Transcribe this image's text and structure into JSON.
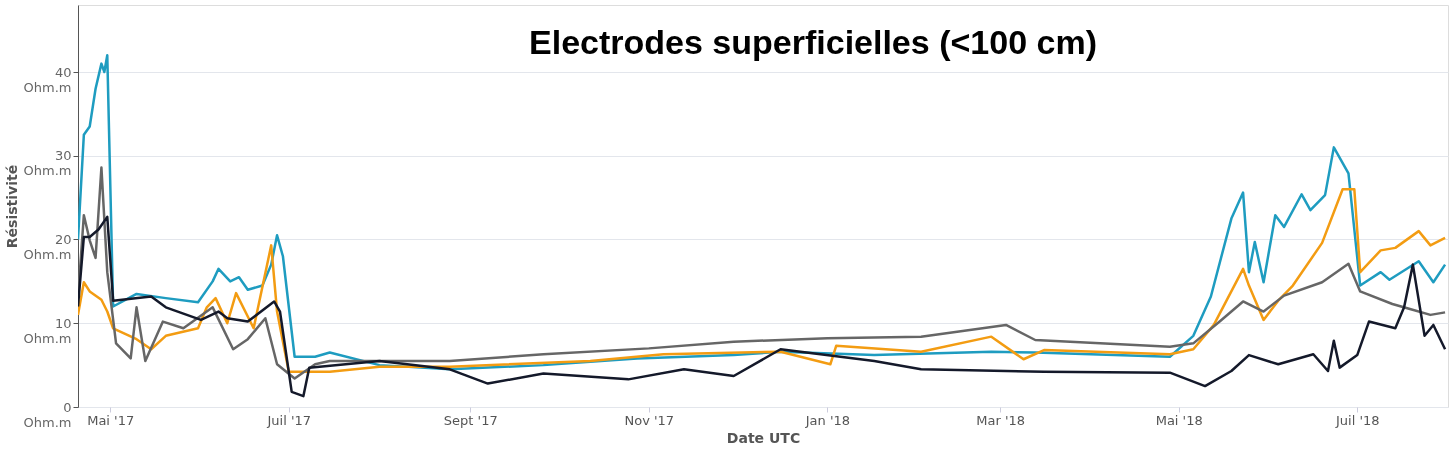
{
  "chart_data": {
    "type": "line",
    "title": "Electrodes superficielles (<100 cm)",
    "xlabel": "Date UTC",
    "ylabel": "Résistivité",
    "xlim": [
      "2017-04-20",
      "2018-08-01"
    ],
    "xticks": [
      {
        "value": "2017-05-01",
        "label": "Mai '17"
      },
      {
        "value": "2017-07-01",
        "label": "Juil '17"
      },
      {
        "value": "2017-09-01",
        "label": "Sept '17"
      },
      {
        "value": "2017-11-01",
        "label": "Nov '17"
      },
      {
        "value": "2018-01-01",
        "label": "Jan '18"
      },
      {
        "value": "2018-03-01",
        "label": "Mar '18"
      },
      {
        "value": "2018-05-01",
        "label": "Mai '18"
      },
      {
        "value": "2018-07-01",
        "label": "Juil '18"
      }
    ],
    "ylim": [
      0,
      48
    ],
    "yticks": [
      {
        "value": 0,
        "label": "0 Ohm.m"
      },
      {
        "value": 10,
        "label": "10 Ohm.m"
      },
      {
        "value": 20,
        "label": "20 Ohm.m"
      },
      {
        "value": 30,
        "label": "30 Ohm.m"
      },
      {
        "value": 40,
        "label": "40 Ohm.m"
      }
    ],
    "grid": "y",
    "legend": false,
    "marker": "none",
    "line_style": "solid",
    "series": [
      {
        "color": "#1e9cc0",
        "x": [
          "2017-04-20",
          "2017-04-22",
          "2017-04-24",
          "2017-04-26",
          "2017-04-28",
          "2017-04-29",
          "2017-04-30",
          "2017-05-02",
          "2017-05-10",
          "2017-05-20",
          "2017-05-31",
          "2017-06-05",
          "2017-06-07",
          "2017-06-11",
          "2017-06-14",
          "2017-06-17",
          "2017-06-22",
          "2017-06-25",
          "2017-06-27",
          "2017-06-29",
          "2017-07-03",
          "2017-07-10",
          "2017-07-15",
          "2017-08-01",
          "2017-08-25",
          "2017-09-26",
          "2017-10-28",
          "2017-11-30",
          "2017-12-16",
          "2018-01-17",
          "2018-02-26",
          "2018-03-13",
          "2018-04-28",
          "2018-05-06",
          "2018-05-12",
          "2018-05-19",
          "2018-05-23",
          "2018-05-25",
          "2018-05-27",
          "2018-05-30",
          "2018-06-03",
          "2018-06-06",
          "2018-06-12",
          "2018-06-15",
          "2018-06-20",
          "2018-06-23",
          "2018-06-28",
          "2018-07-02",
          "2018-07-09",
          "2018-07-12",
          "2018-07-22",
          "2018-07-27",
          "2018-07-31"
        ],
        "values": [
          20,
          32.5,
          33.5,
          38,
          41,
          40,
          42,
          12,
          13.5,
          13,
          12.5,
          15,
          16.5,
          15,
          15.5,
          14,
          14.5,
          17,
          20.5,
          18,
          6,
          6,
          6.5,
          5,
          4.5,
          5,
          5.8,
          6.2,
          6.6,
          6.2,
          6.6,
          6.5,
          6.0,
          8.5,
          13.2,
          22.5,
          25.6,
          16.1,
          19.7,
          14.9,
          22.9,
          21.5,
          25.4,
          23.5,
          25.3,
          31.0,
          27.9,
          14.5,
          16.1,
          15.2,
          17.4,
          14.9,
          17.0
        ]
      },
      {
        "color": "#f39c12",
        "x": [
          "2017-04-20",
          "2017-04-22",
          "2017-04-24",
          "2017-04-28",
          "2017-04-30",
          "2017-05-02",
          "2017-05-10",
          "2017-05-15",
          "2017-05-20",
          "2017-05-31",
          "2017-06-03",
          "2017-06-06",
          "2017-06-10",
          "2017-06-13",
          "2017-06-19",
          "2017-06-25",
          "2017-06-27",
          "2017-07-01",
          "2017-07-15",
          "2017-08-01",
          "2017-08-25",
          "2017-10-12",
          "2017-11-06",
          "2017-12-16",
          "2018-01-02",
          "2018-01-04",
          "2018-02-02",
          "2018-02-26",
          "2018-03-09",
          "2018-03-16",
          "2018-04-28",
          "2018-05-06",
          "2018-05-13",
          "2018-05-23",
          "2018-05-25",
          "2018-05-30",
          "2018-06-04",
          "2018-06-09",
          "2018-06-19",
          "2018-06-26",
          "2018-06-30",
          "2018-07-02",
          "2018-07-09",
          "2018-07-14",
          "2018-07-22",
          "2018-07-26",
          "2018-07-31"
        ],
        "values": [
          11,
          14.9,
          13.8,
          12.8,
          11.4,
          9.4,
          8.1,
          6.9,
          8.5,
          9.4,
          11.9,
          13,
          10,
          13.6,
          9.4,
          19.3,
          11.4,
          4.2,
          4.2,
          4.8,
          4.8,
          5.5,
          6.3,
          6.6,
          5.1,
          7.3,
          6.6,
          8.4,
          5.7,
          6.8,
          6.3,
          6.9,
          9.8,
          16.5,
          14.5,
          10.4,
          12.7,
          14.5,
          19.6,
          26.0,
          26.0,
          16.1,
          18.7,
          19.0,
          21.0,
          19.3,
          20.2
        ]
      },
      {
        "color": "#666666",
        "x": [
          "2017-04-20",
          "2017-04-22",
          "2017-04-24",
          "2017-04-26",
          "2017-04-28",
          "2017-04-30",
          "2017-05-03",
          "2017-05-08",
          "2017-05-10",
          "2017-05-13",
          "2017-05-19",
          "2017-05-26",
          "2017-06-05",
          "2017-06-12",
          "2017-06-17",
          "2017-06-23",
          "2017-06-27",
          "2017-07-03",
          "2017-07-10",
          "2017-07-15",
          "2017-08-25",
          "2017-09-26",
          "2017-11-01",
          "2017-11-30",
          "2018-01-01",
          "2018-02-02",
          "2018-03-03",
          "2018-03-13",
          "2018-04-28",
          "2018-05-06",
          "2018-05-15",
          "2018-05-23",
          "2018-05-30",
          "2018-06-06",
          "2018-06-19",
          "2018-06-28",
          "2018-07-02",
          "2018-07-13",
          "2018-07-19",
          "2018-07-26",
          "2018-07-31"
        ],
        "values": [
          13,
          22.9,
          19.9,
          17.8,
          28.6,
          16.1,
          7.6,
          5.8,
          11.9,
          5.5,
          10.2,
          9.4,
          11.9,
          6.9,
          8.1,
          10.6,
          5.1,
          3.4,
          5.1,
          5.5,
          5.5,
          6.3,
          7.0,
          7.8,
          8.2,
          8.4,
          9.8,
          8.0,
          7.2,
          7.6,
          10.2,
          12.6,
          11.4,
          13.3,
          14.9,
          17.1,
          13.8,
          12.3,
          11.7,
          11.0,
          11.3
        ]
      },
      {
        "color": "#14192a",
        "x": [
          "2017-04-20",
          "2017-04-22",
          "2017-04-24",
          "2017-04-27",
          "2017-04-30",
          "2017-05-02",
          "2017-05-15",
          "2017-05-20",
          "2017-06-01",
          "2017-06-07",
          "2017-06-10",
          "2017-06-17",
          "2017-06-26",
          "2017-06-28",
          "2017-07-02",
          "2017-07-06",
          "2017-07-08",
          "2017-08-01",
          "2017-08-25",
          "2017-09-07",
          "2017-09-26",
          "2017-10-25",
          "2017-11-13",
          "2017-11-30",
          "2017-12-16",
          "2018-01-17",
          "2018-02-02",
          "2018-03-16",
          "2018-04-28",
          "2018-05-10",
          "2018-05-19",
          "2018-05-25",
          "2018-06-04",
          "2018-06-16",
          "2018-06-21",
          "2018-06-23",
          "2018-06-25",
          "2018-07-01",
          "2018-07-05",
          "2018-07-14",
          "2018-07-17",
          "2018-07-20",
          "2018-07-24",
          "2018-07-27",
          "2018-07-31"
        ],
        "values": [
          12,
          20.3,
          20.3,
          21.2,
          22.7,
          12.7,
          13.2,
          11.9,
          10.4,
          11.4,
          10.6,
          10.2,
          12.6,
          11.4,
          1.8,
          1.3,
          4.7,
          5.5,
          4.5,
          2.8,
          4.0,
          3.3,
          4.5,
          3.7,
          6.9,
          5.5,
          4.5,
          4.2,
          4.1,
          2.5,
          4.3,
          6.2,
          5.1,
          6.3,
          4.3,
          7.9,
          4.7,
          6.2,
          10.2,
          9.4,
          11.9,
          17.0,
          8.5,
          9.8,
          6.9
        ]
      }
    ]
  }
}
